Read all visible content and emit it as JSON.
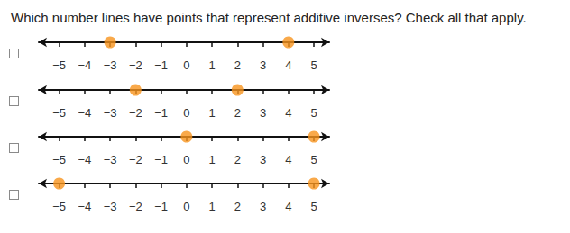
{
  "question": "Which number lines have points that represent additive inverses? Check all that apply.",
  "chart_data": [
    {
      "type": "scatter",
      "x": [
        -3,
        4
      ],
      "xlim": [
        -5.8,
        5.6
      ],
      "color": "#f7941d",
      "marker": "circle",
      "xticks": [
        {
          "value": -5,
          "label": "−5"
        },
        {
          "value": -4,
          "label": "−4"
        },
        {
          "value": -3,
          "label": "−3"
        },
        {
          "value": -2,
          "label": "−2"
        },
        {
          "value": -1,
          "label": "−1"
        },
        0,
        1,
        2,
        3,
        4,
        5
      ]
    },
    {
      "type": "scatter",
      "x": [
        -2,
        2
      ],
      "xlim": [
        -5.8,
        5.6
      ],
      "color": "#f7941d",
      "marker": "circle",
      "xticks": [
        {
          "value": -5,
          "label": "−5"
        },
        {
          "value": -4,
          "label": "−4"
        },
        {
          "value": -3,
          "label": "−3"
        },
        {
          "value": -2,
          "label": "−2"
        },
        {
          "value": -1,
          "label": "−1"
        },
        0,
        1,
        2,
        3,
        4,
        5
      ]
    },
    {
      "type": "scatter",
      "x": [
        0,
        5
      ],
      "xlim": [
        -5.8,
        5.6
      ],
      "color": "#f7941d",
      "marker": "circle",
      "xticks": [
        {
          "value": -5,
          "label": "−5"
        },
        {
          "value": -4,
          "label": "−4"
        },
        {
          "value": -3,
          "label": "−3"
        },
        {
          "value": -2,
          "label": "−2"
        },
        {
          "value": -1,
          "label": "−1"
        },
        0,
        1,
        2,
        3,
        4,
        5
      ]
    },
    {
      "type": "scatter",
      "x": [
        -5,
        5
      ],
      "xlim": [
        -5.8,
        5.6
      ],
      "color": "#f7941d",
      "marker": "circle",
      "xticks": [
        {
          "value": -5,
          "label": "−5"
        },
        {
          "value": -4,
          "label": "−4"
        },
        {
          "value": -3,
          "label": "−3"
        },
        {
          "value": -2,
          "label": "−2"
        },
        {
          "value": -1,
          "label": "−1"
        },
        0,
        1,
        2,
        3,
        4,
        5
      ]
    }
  ]
}
